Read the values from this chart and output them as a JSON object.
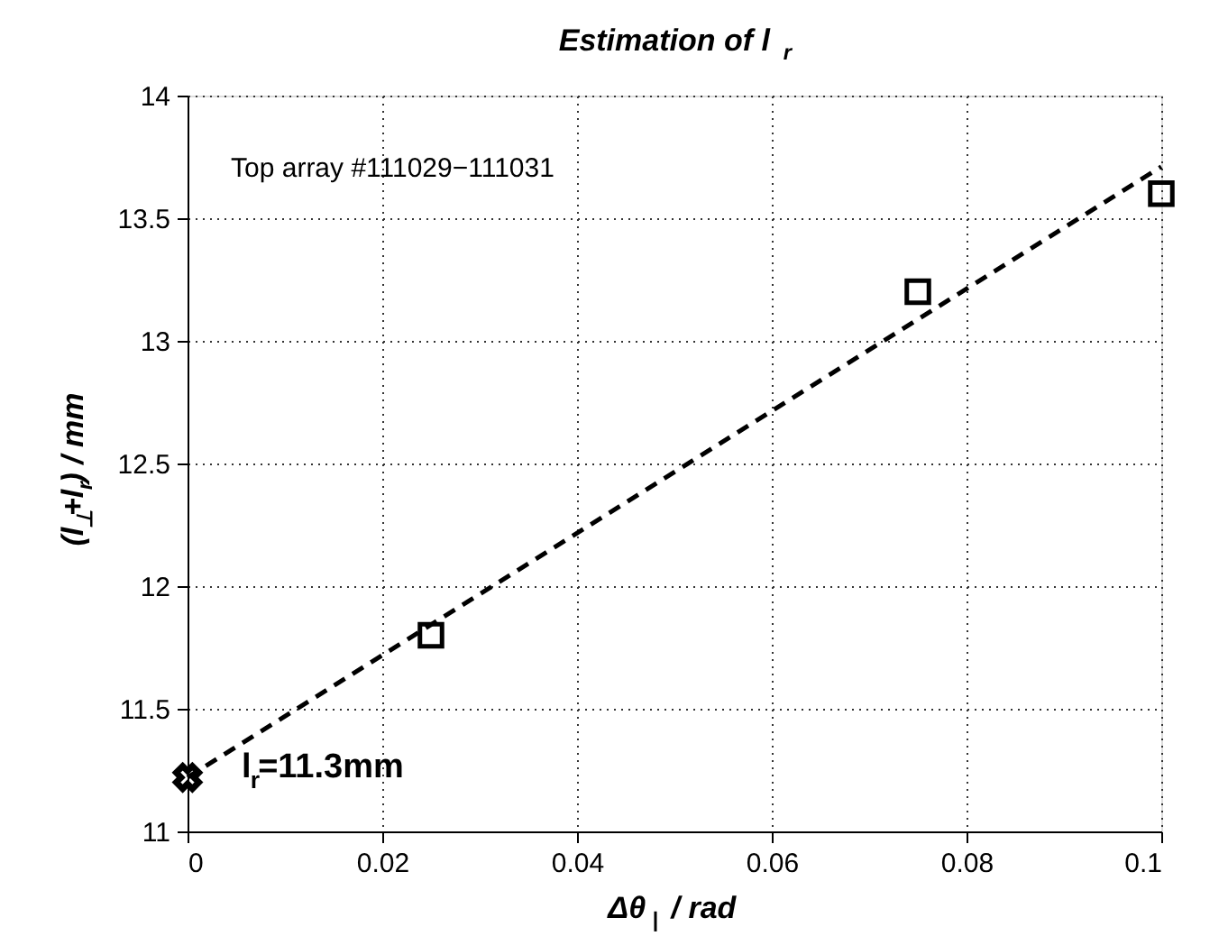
{
  "chart_data": {
    "type": "scatter",
    "title": "Estimation of l$_{r}$",
    "xlabel": "Δθ$_{|}$ / rad",
    "ylabel": "(l$_{⊥}$+l$_{r}$) / mm",
    "xlim": [
      0,
      0.1
    ],
    "ylim": [
      11,
      14
    ],
    "xticks": [
      0,
      0.02,
      0.04,
      0.06,
      0.08,
      0.1
    ],
    "yticks": [
      11,
      11.5,
      12,
      12.5,
      13,
      13.5,
      14
    ],
    "grid": true,
    "series": [
      {
        "type": "line",
        "line_style": "dashed",
        "marker": "none",
        "color": "#000000",
        "x": [
          0,
          0.1
        ],
        "values": [
          11.22,
          13.71
        ]
      },
      {
        "marker": "square",
        "color": "#000000",
        "x": [
          0.025,
          0.075,
          0.1
        ],
        "values": [
          11.8,
          13.2,
          13.6
        ]
      },
      {
        "marker": "cross",
        "color": "#000000",
        "x": [
          0
        ],
        "values": [
          11.22
        ]
      }
    ],
    "annotations": [
      "Top array #111029−111031",
      {
        "text": "l$_{r}$=11.3mm",
        "x": 0,
        "y": 11.22
      }
    ]
  }
}
